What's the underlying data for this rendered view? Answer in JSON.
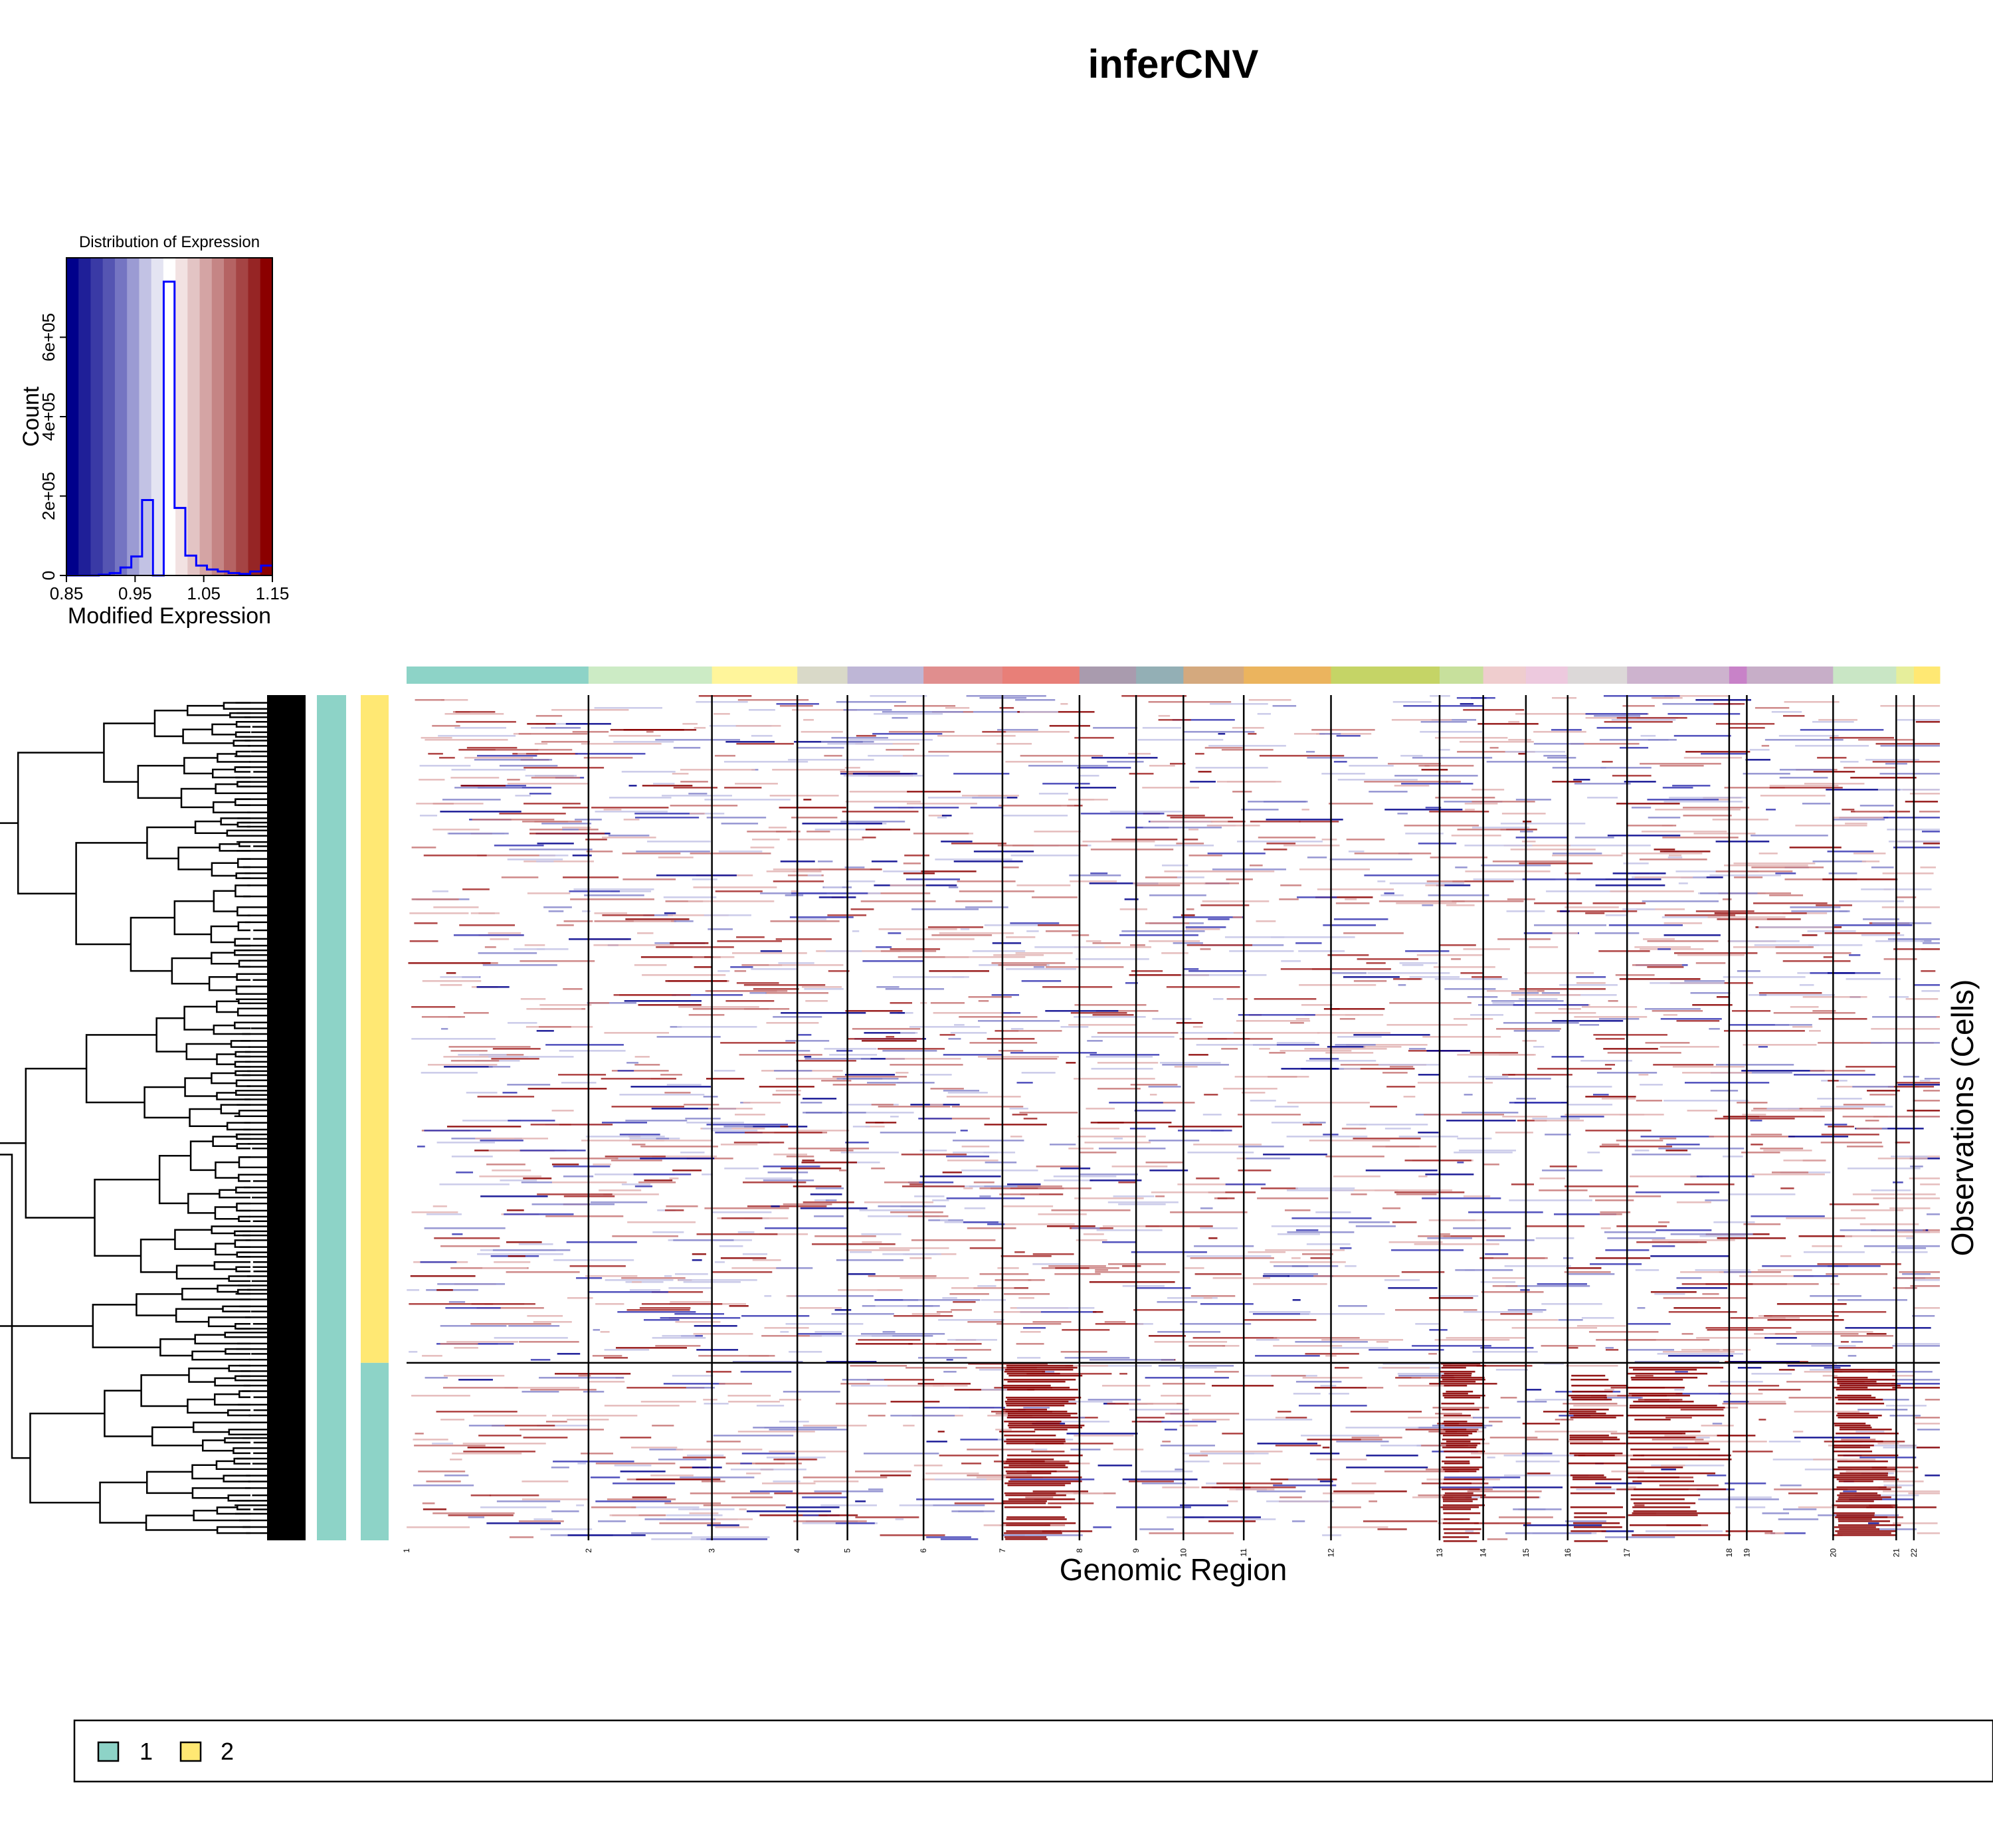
{
  "title": "inferCNV",
  "colors": {
    "low": "#00008B",
    "high": "#8B0000",
    "hist_line": "#0000FF",
    "group_1": "#8DD3C7",
    "group_2": "#FFE873"
  },
  "chart_data": [
    {
      "type": "bar",
      "title": "Distribution of Expression",
      "xlabel": "Modified Expression",
      "ylabel": "Count",
      "xlim": [
        0.85,
        1.15
      ],
      "ylim": [
        0,
        800000
      ],
      "xticks": [
        "0.85",
        "0.95",
        "1.05",
        "1.15"
      ],
      "yticks": [
        "0",
        "2e+05",
        "4e+05",
        "6e+05"
      ],
      "bin_edges": [
        0.85,
        0.8657,
        0.8815,
        0.8972,
        0.913,
        0.9287,
        0.9445,
        0.9602,
        0.976,
        0.9917,
        1.0075,
        1.0232,
        1.039,
        1.0547,
        1.0705,
        1.0862,
        1.102,
        1.1177,
        1.1335,
        1.15
      ],
      "values": [
        0,
        0,
        0,
        2000,
        6000,
        20000,
        48000,
        190000,
        0,
        740000,
        170000,
        50000,
        25000,
        15000,
        10000,
        6000,
        4000,
        10000,
        25000
      ],
      "color_scale": [
        "#00008B",
        "#1F1F98",
        "#3A3AA5",
        "#5555B2",
        "#7575C2",
        "#9B9BD3",
        "#C2C2E4",
        "#E4E4F2",
        "#FFFFFF",
        "#F2E2E2",
        "#E3C4C4",
        "#D4A4A4",
        "#C58585",
        "#B56363",
        "#A54444",
        "#962525",
        "#8B0000"
      ]
    },
    {
      "type": "heatmap",
      "xlabel": "Genomic Region",
      "ylabel": "Observations (Cells)",
      "chromosomes": [
        {
          "label": "1",
          "start": 0,
          "end": 196,
          "color": "#8DD3C7"
        },
        {
          "label": "2",
          "start": 196,
          "end": 329,
          "color": "#CCEBC5"
        },
        {
          "label": "3",
          "start": 329,
          "end": 421,
          "color": "#FFF59B"
        },
        {
          "label": "4",
          "start": 421,
          "end": 475,
          "color": "#D9D9C8"
        },
        {
          "label": "5",
          "start": 475,
          "end": 557,
          "color": "#BEB6D6"
        },
        {
          "label": "6",
          "start": 557,
          "end": 642,
          "color": "#E08E8E"
        },
        {
          "label": "7",
          "start": 642,
          "end": 725,
          "color": "#E87F78"
        },
        {
          "label": "8",
          "start": 725,
          "end": 786,
          "color": "#A99BAE"
        },
        {
          "label": "9",
          "start": 786,
          "end": 837,
          "color": "#93AFB5"
        },
        {
          "label": "10",
          "start": 837,
          "end": 902,
          "color": "#D4A97E"
        },
        {
          "label": "11",
          "start": 902,
          "end": 996,
          "color": "#EBB45E"
        },
        {
          "label": "12",
          "start": 996,
          "end": 1113,
          "color": "#C5D466"
        },
        {
          "label": "13",
          "start": 1113,
          "end": 1160,
          "color": "#C7E09C"
        },
        {
          "label": "14",
          "start": 1160,
          "end": 1206,
          "color": "#EFCDCE"
        },
        {
          "label": "15",
          "start": 1206,
          "end": 1251,
          "color": "#EDC9DE"
        },
        {
          "label": "16",
          "start": 1251,
          "end": 1315,
          "color": "#DCD8D8"
        },
        {
          "label": "17",
          "start": 1315,
          "end": 1425,
          "color": "#CDB3CE"
        },
        {
          "label": "18",
          "start": 1425,
          "end": 1444,
          "color": "#C882C8"
        },
        {
          "label": "19",
          "start": 1444,
          "end": 1537,
          "color": "#C7AEC8"
        },
        {
          "label": "20",
          "start": 1537,
          "end": 1605,
          "color": "#C9E6C5"
        },
        {
          "label": "21",
          "start": 1605,
          "end": 1624,
          "color": "#E6EE9B"
        },
        {
          "label": "22",
          "start": 1624,
          "end": 1652,
          "color": "#FFE873"
        }
      ],
      "n_genes": 1652,
      "groups": [
        {
          "name": "2",
          "start": 0,
          "end": 0.79,
          "color": "#FFE873"
        },
        {
          "name": "1",
          "start": 0.79,
          "end": 1.0,
          "color": "#8DD3C7"
        }
      ],
      "observation_annotation_color": "#8DD3C7"
    }
  ],
  "legend": {
    "items": [
      {
        "label": "1",
        "color": "#8DD3C7"
      },
      {
        "label": "2",
        "color": "#FFE873"
      }
    ]
  }
}
